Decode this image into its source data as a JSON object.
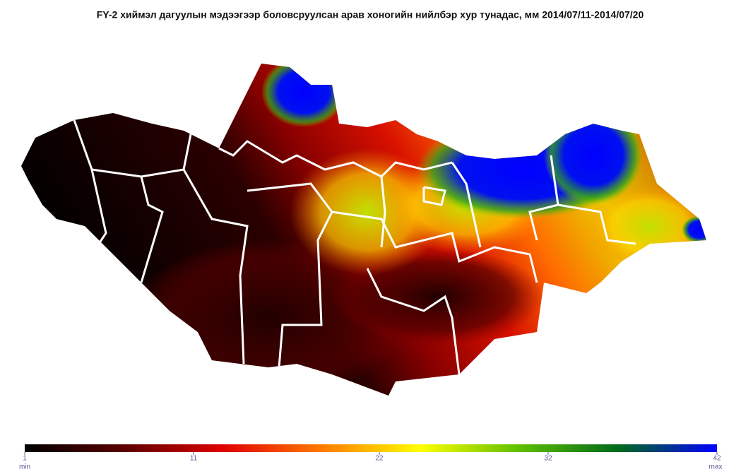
{
  "title": "FY-2  хиймэл дагуулын мэдээгээр боловсруулсан арав хоногийн нийлбэр хур тунадас, мм 2014/07/11-2014/07/20",
  "colorbar": {
    "lim": [
      1,
      42
    ],
    "ticks": [
      1,
      11,
      22,
      32,
      42
    ],
    "min_label": "min",
    "max_label": "max",
    "colors": [
      "#000000",
      "#5a0000",
      "#e00000",
      "#ff7a00",
      "#ffff00",
      "#5fbf00",
      "#006a1a",
      "#0000ff"
    ]
  }
}
